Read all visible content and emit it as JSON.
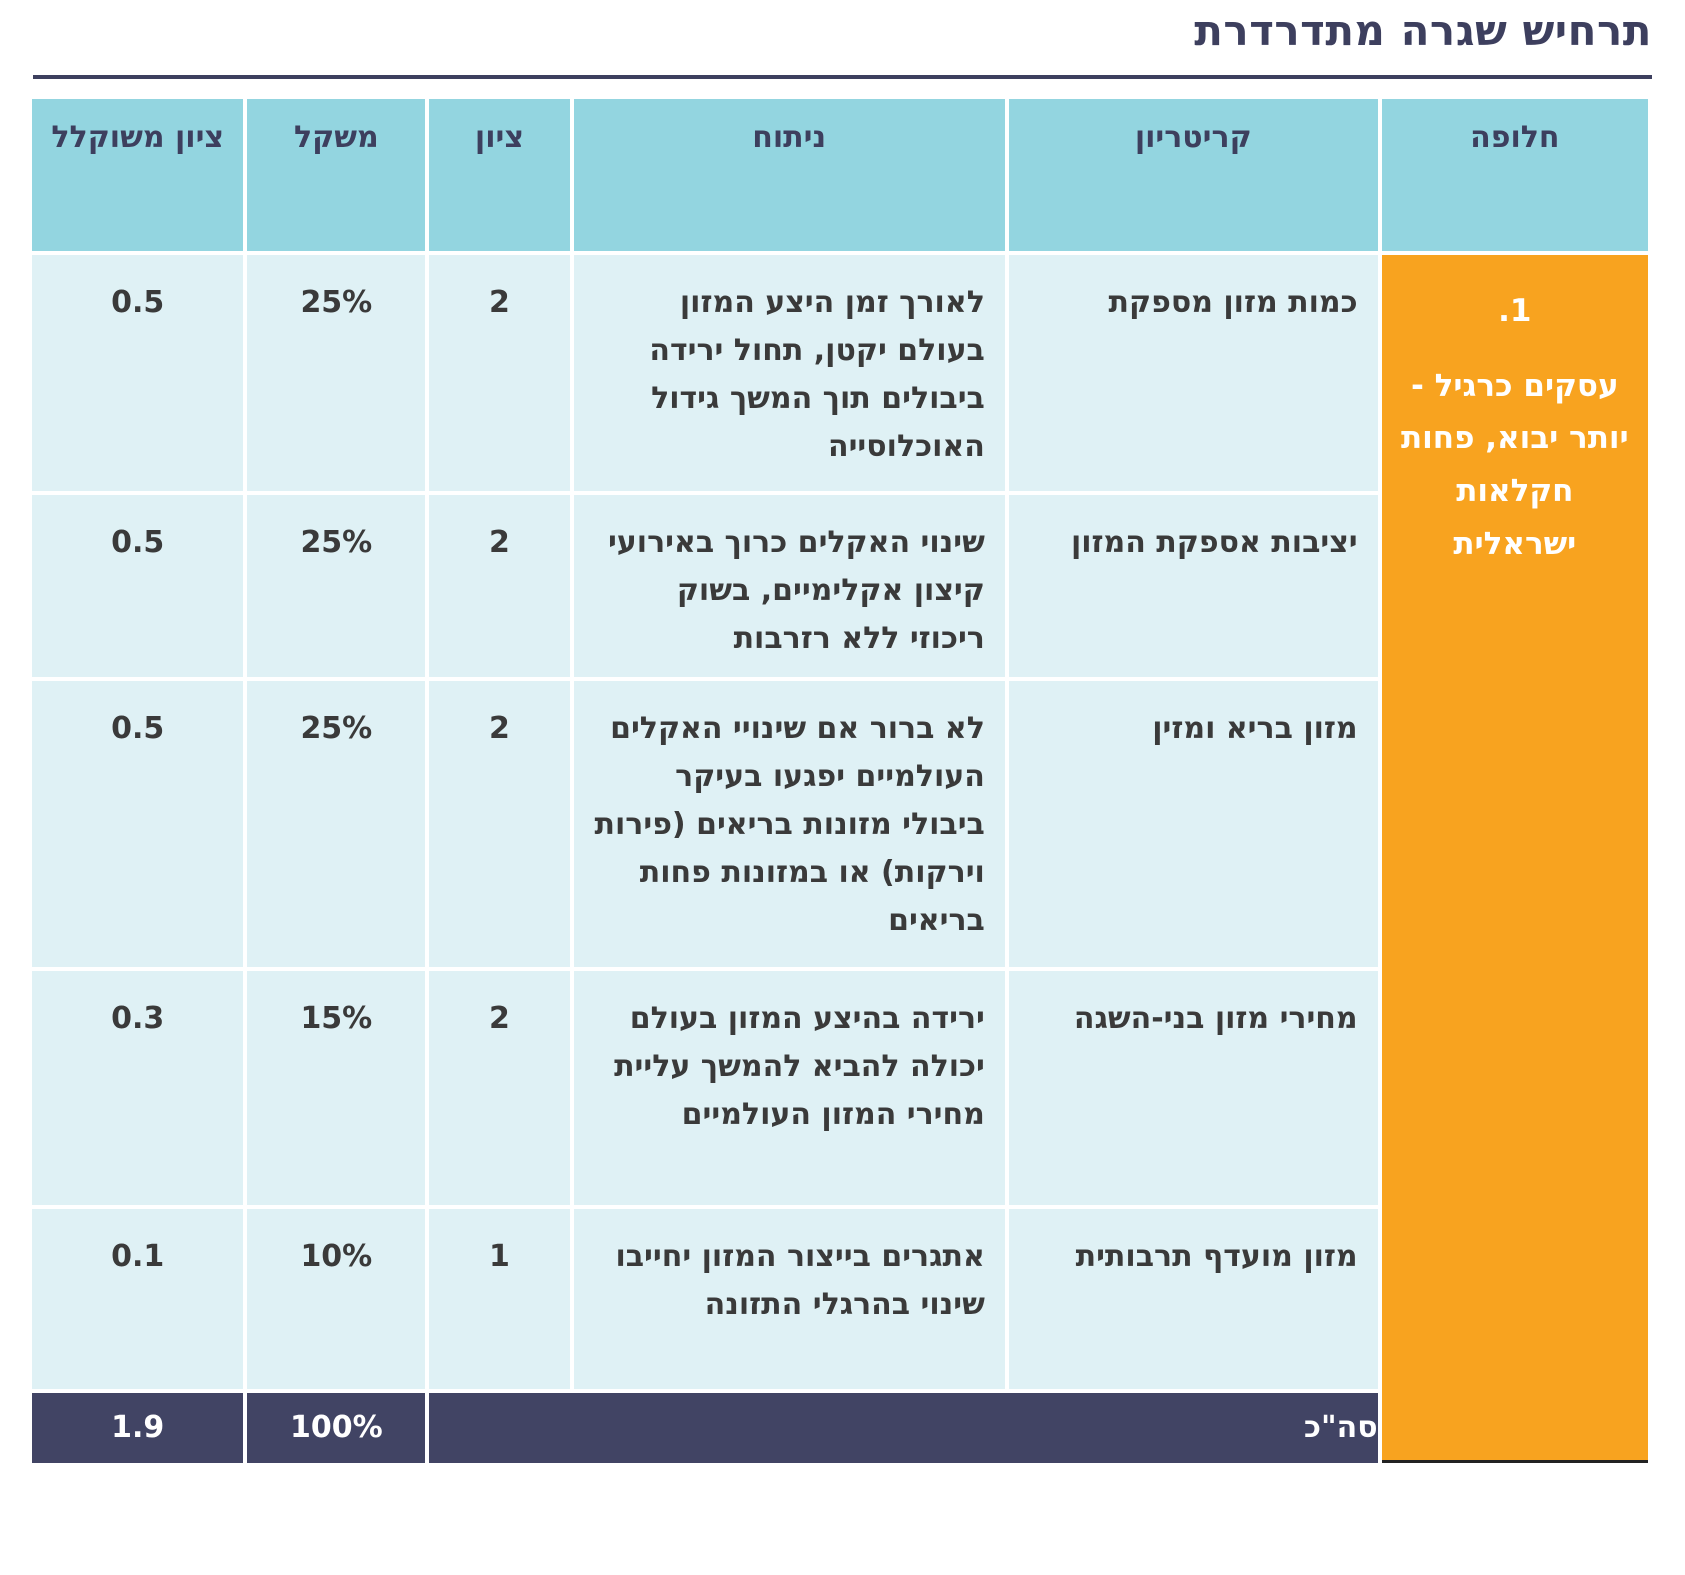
{
  "title": "תרחיש שגרה מתדרדרת",
  "headers": {
    "alternative": "חלופה",
    "criterion": "קריטריון",
    "analysis": "ניתוח",
    "score": "ציון",
    "weight": "משקל",
    "weighted": "ציון משוקלל"
  },
  "alternative": {
    "number": "1.",
    "name": "עסקים כרגיל - יותר יבוא, פחות חקלאות ישראלית"
  },
  "rows": [
    {
      "criterion": "כמות מזון מספקת",
      "analysis": "לאורך זמן היצע המזון בעולם יקטן, תחול ירידה ביבולים תוך המשך גידול האוכלוסייה",
      "score": "2",
      "weight": "25%",
      "weighted": "0.5"
    },
    {
      "criterion": "יציבות אספקת המזון",
      "analysis": "שינוי האקלים כרוך באירועי קיצון אקלימיים, בשוק ריכוזי ללא רזרבות",
      "score": "2",
      "weight": "25%",
      "weighted": "0.5"
    },
    {
      "criterion": "מזון בריא ומזין",
      "analysis": "לא ברור אם שינויי האקלים העולמיים יפגעו בעיקר ביבולי מזונות בריאים (פירות וירקות) או במזונות פחות בריאים",
      "score": "2",
      "weight": "25%",
      "weighted": "0.5"
    },
    {
      "criterion": "מחירי מזון בני-השגה",
      "analysis": "ירידה בהיצע המזון בעולם יכולה להביא להמשך עליית מחירי המזון העולמיים",
      "score": "2",
      "weight": "15%",
      "weighted": "0.3"
    },
    {
      "criterion": "מזון מועדף תרבותית",
      "analysis": "אתגרים בייצור המזון יחייבו שינוי בהרגלי התזונה",
      "score": "1",
      "weight": "10%",
      "weighted": "0.1"
    }
  ],
  "total": {
    "label": "סה\"כ",
    "weight": "100%",
    "weighted": "1.9"
  },
  "colors": {
    "header": "#93d5e0",
    "cell": "#dff1f5",
    "alternative": "#f8a31f",
    "total": "#414464",
    "title": "#3d3f5e"
  }
}
